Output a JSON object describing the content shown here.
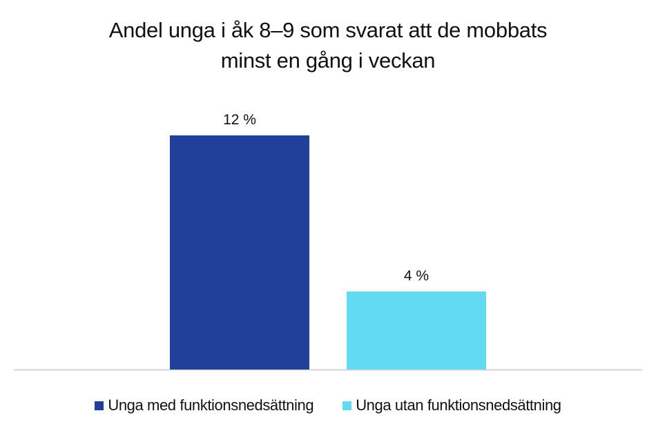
{
  "chart_data": {
    "type": "bar",
    "title_lines": [
      "Andel unga i åk 8–9 som svarat att de mobbats",
      "minst en gång i veckan"
    ],
    "categories": [
      "Unga med funktionsnedsättning",
      "Unga utan funktionsnedsättning"
    ],
    "values": [
      12,
      4
    ],
    "data_labels": [
      "12 %",
      "4 %"
    ],
    "colors": [
      "#21409A",
      "#62DBF2"
    ],
    "xlabel": "",
    "ylabel": "",
    "ylim": [
      0,
      12
    ],
    "grid": false,
    "legend_placement": "bottom"
  }
}
